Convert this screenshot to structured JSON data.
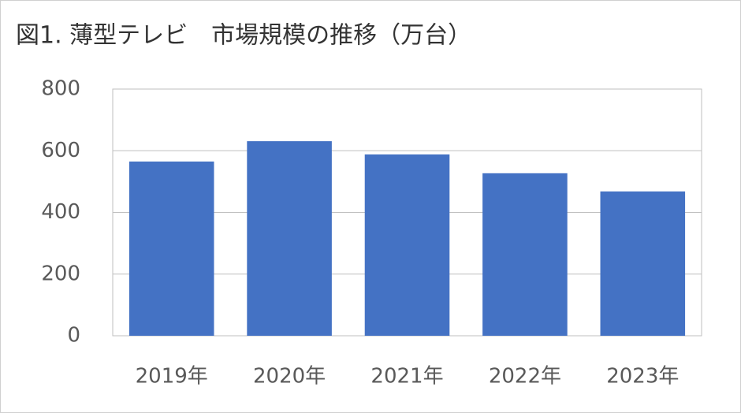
{
  "chart_data": {
    "type": "bar",
    "title": "図1. 薄型テレビ　市場規模の推移（万台）",
    "categories": [
      "2019年",
      "2020年",
      "2021年",
      "2022年",
      "2023年"
    ],
    "values": [
      565,
      631,
      588,
      527,
      468
    ],
    "color": "#4472c4",
    "ylim": [
      0,
      800
    ],
    "yticks": [
      0,
      200,
      400,
      600,
      800
    ],
    "grid": true
  }
}
